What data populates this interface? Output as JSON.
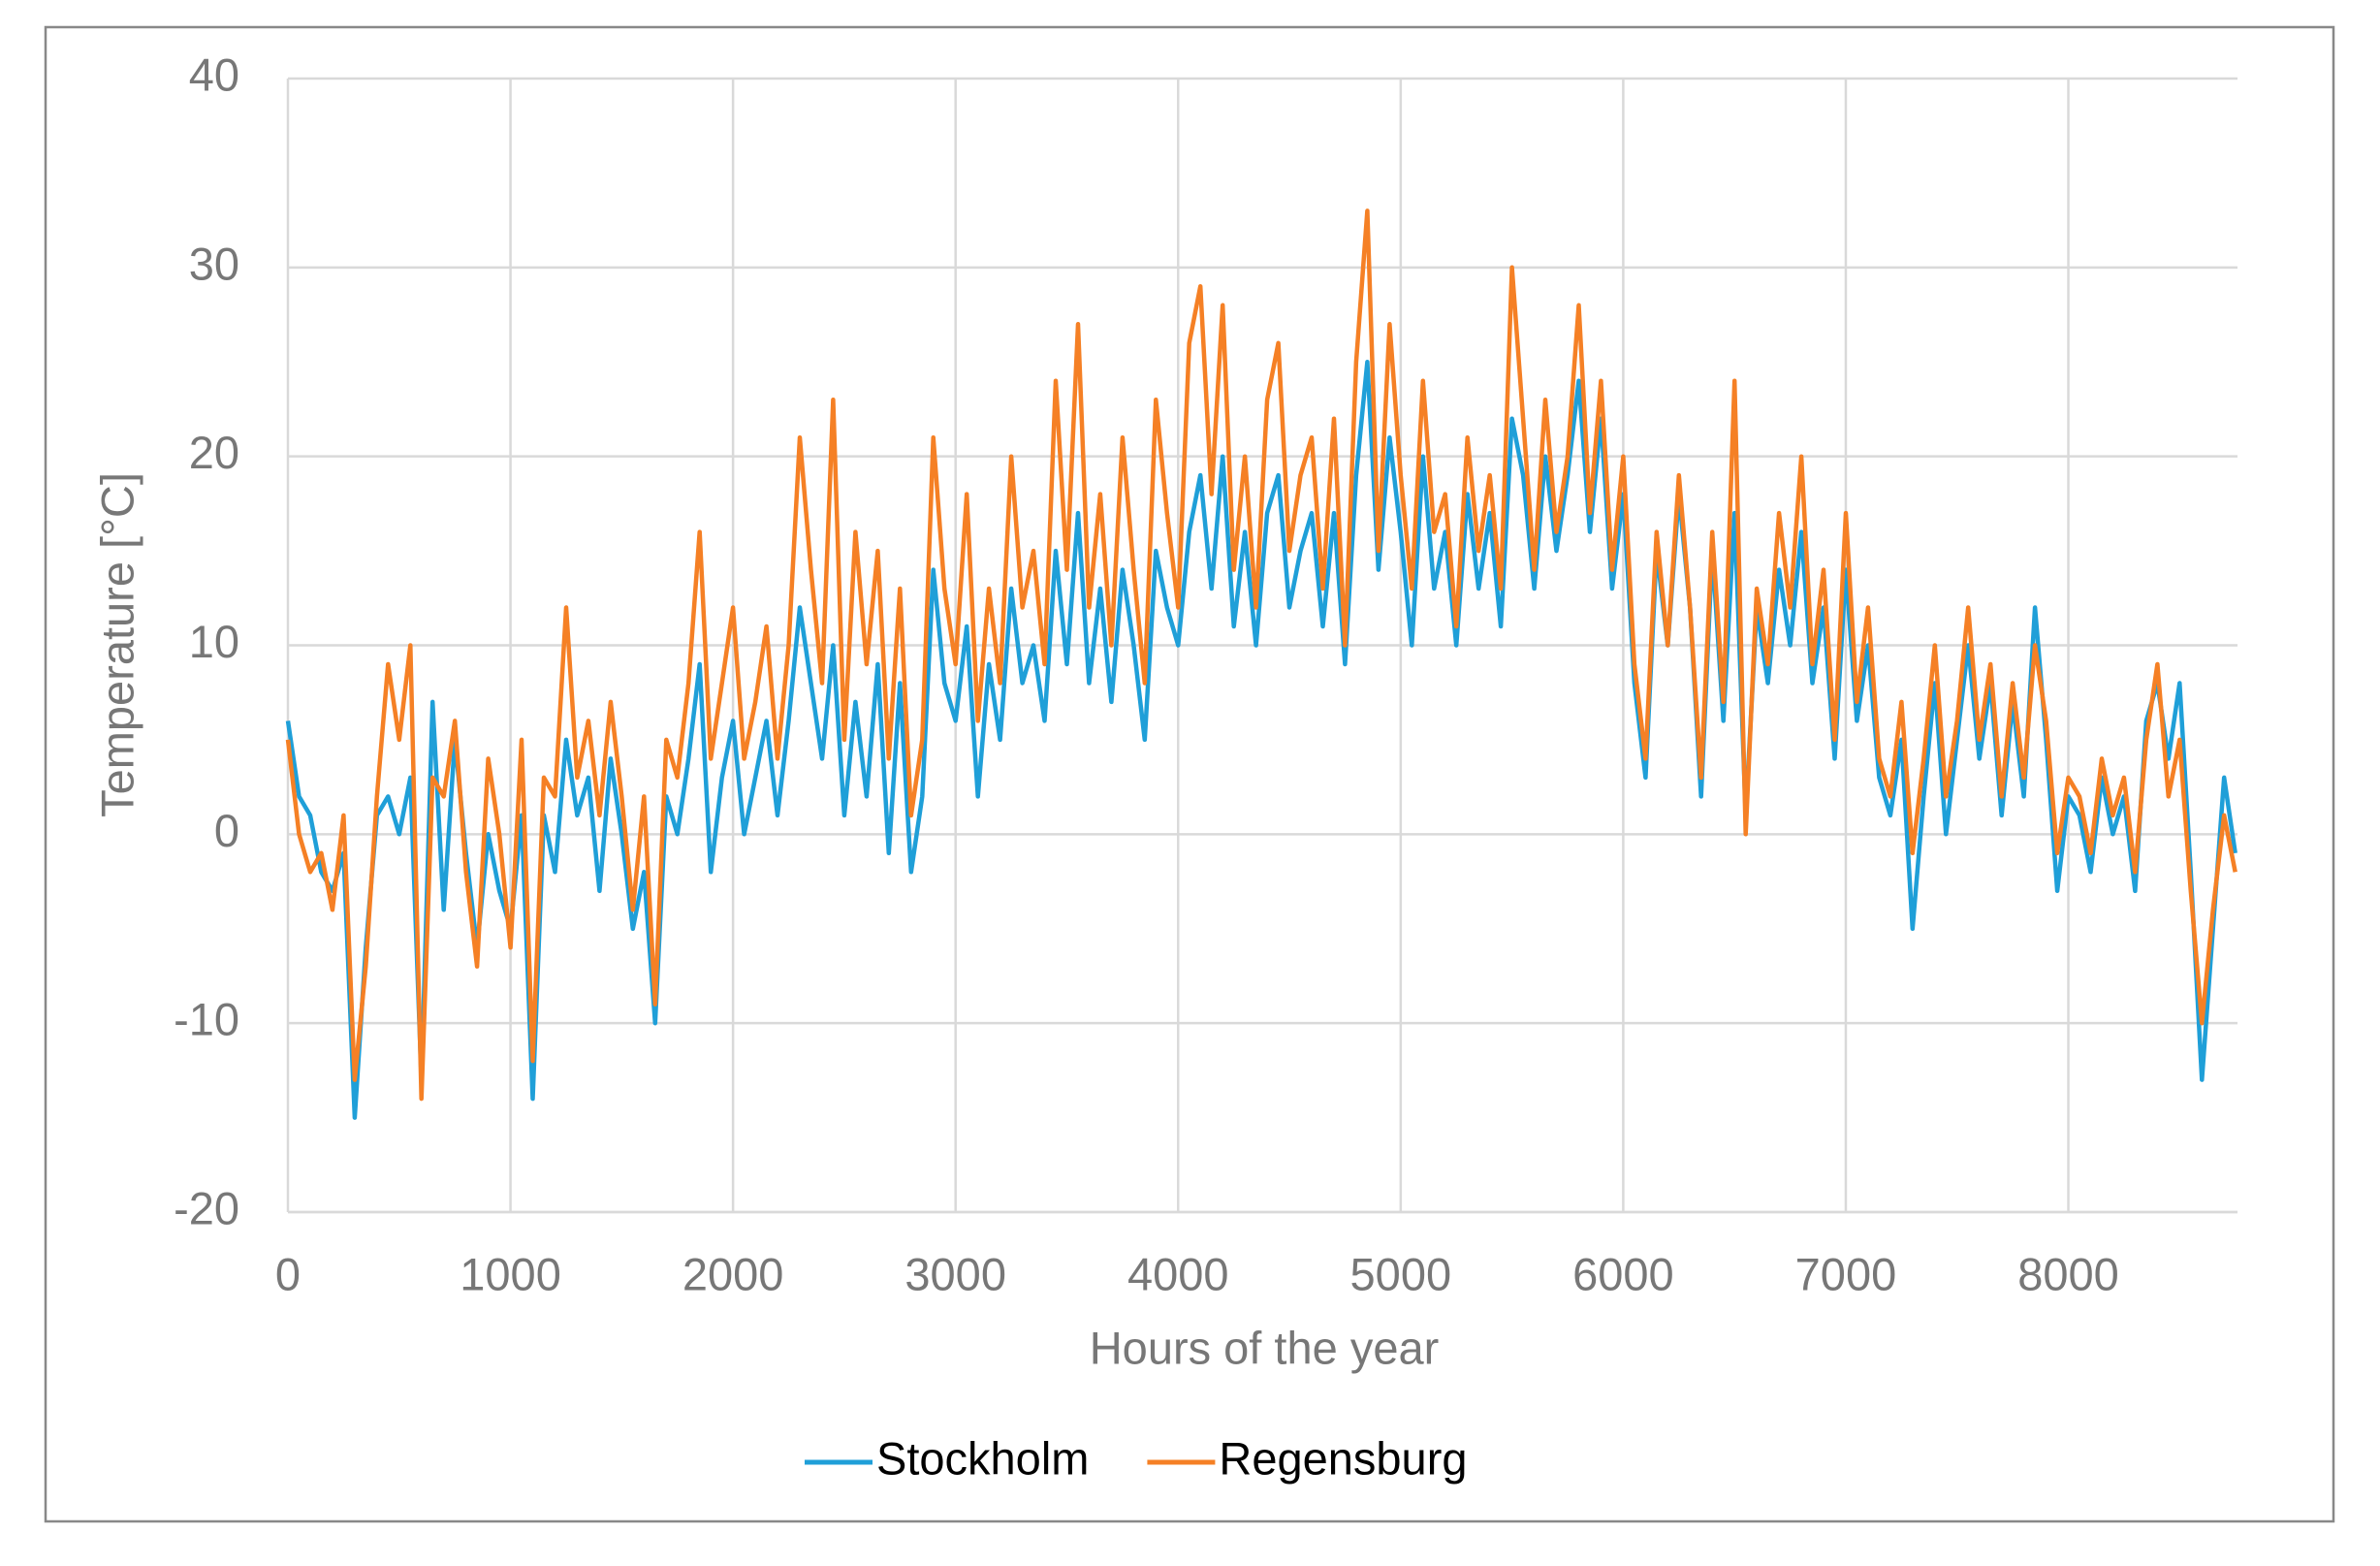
{
  "chart_data": {
    "type": "line",
    "x_label": "Hours of the year",
    "y_label": "Temperature [°C]",
    "x": [
      0,
      50,
      100,
      150,
      200,
      250,
      300,
      350,
      400,
      450,
      500,
      550,
      600,
      650,
      700,
      750,
      800,
      850,
      900,
      950,
      1000,
      1050,
      1100,
      1150,
      1200,
      1250,
      1300,
      1350,
      1400,
      1450,
      1500,
      1550,
      1600,
      1650,
      1700,
      1750,
      1800,
      1850,
      1900,
      1950,
      2000,
      2050,
      2100,
      2150,
      2200,
      2250,
      2300,
      2350,
      2400,
      2450,
      2500,
      2550,
      2600,
      2650,
      2700,
      2750,
      2800,
      2850,
      2900,
      2950,
      3000,
      3050,
      3100,
      3150,
      3200,
      3250,
      3300,
      3350,
      3400,
      3450,
      3500,
      3550,
      3600,
      3650,
      3700,
      3750,
      3800,
      3850,
      3900,
      3950,
      4000,
      4050,
      4100,
      4150,
      4200,
      4250,
      4300,
      4350,
      4400,
      4450,
      4500,
      4550,
      4600,
      4650,
      4700,
      4750,
      4800,
      4850,
      4900,
      4950,
      5000,
      5050,
      5100,
      5150,
      5200,
      5250,
      5300,
      5350,
      5400,
      5450,
      5500,
      5550,
      5600,
      5650,
      5700,
      5750,
      5800,
      5850,
      5900,
      5950,
      6000,
      6050,
      6100,
      6150,
      6200,
      6250,
      6300,
      6350,
      6400,
      6450,
      6500,
      6550,
      6600,
      6650,
      6700,
      6750,
      6800,
      6850,
      6900,
      6950,
      7000,
      7050,
      7100,
      7150,
      7200,
      7250,
      7300,
      7350,
      7400,
      7450,
      7500,
      7550,
      7600,
      7650,
      7700,
      7750,
      7800,
      7850,
      7900,
      7950,
      8000,
      8050,
      8100,
      8150,
      8200,
      8250,
      8300,
      8350,
      8400,
      8450,
      8500,
      8550,
      8600,
      8650,
      8700,
      8750
    ],
    "series": [
      {
        "name": "Stockholm",
        "color": "#1f9fd8",
        "values": [
          6,
          2,
          1,
          -2,
          -3,
          -1,
          -15,
          -6,
          1,
          2,
          0,
          3,
          -13,
          7,
          -4,
          5,
          -1,
          -6,
          0,
          -3,
          -5,
          1,
          -14,
          1,
          -2,
          5,
          1,
          3,
          -3,
          4,
          0,
          -5,
          -2,
          -10,
          2,
          0,
          4,
          9,
          -2,
          3,
          6,
          0,
          3,
          6,
          1,
          6,
          12,
          8,
          4,
          10,
          1,
          7,
          2,
          9,
          -1,
          8,
          -2,
          2,
          14,
          8,
          6,
          11,
          2,
          9,
          5,
          13,
          8,
          10,
          6,
          15,
          9,
          17,
          8,
          13,
          7,
          14,
          10,
          5,
          15,
          12,
          10,
          16,
          19,
          13,
          20,
          11,
          16,
          10,
          17,
          19,
          12,
          15,
          17,
          11,
          17,
          9,
          19,
          25,
          14,
          21,
          16,
          10,
          20,
          13,
          16,
          10,
          18,
          13,
          17,
          11,
          22,
          19,
          13,
          20,
          15,
          19,
          24,
          16,
          22,
          13,
          18,
          8,
          3,
          15,
          10,
          18,
          12,
          2,
          15,
          6,
          17,
          1,
          12,
          8,
          14,
          10,
          16,
          8,
          12,
          4,
          14,
          6,
          10,
          3,
          1,
          5,
          -5,
          2,
          8,
          0,
          5,
          10,
          4,
          8,
          1,
          7,
          2,
          12,
          5,
          -3,
          2,
          1,
          -2,
          3,
          0,
          2,
          -3,
          6,
          8,
          4,
          8,
          -2,
          -13,
          -5,
          3,
          -1
        ]
      },
      {
        "name": "Regensburg",
        "color": "#f58025",
        "values": [
          5,
          0,
          -2,
          -1,
          -4,
          1,
          -13,
          -7,
          2,
          9,
          5,
          10,
          -14,
          3,
          2,
          6,
          -2,
          -7,
          4,
          0,
          -6,
          5,
          -12,
          3,
          2,
          12,
          3,
          6,
          1,
          7,
          2,
          -4,
          2,
          -9,
          5,
          3,
          8,
          16,
          4,
          8,
          12,
          4,
          7,
          11,
          4,
          10,
          21,
          14,
          8,
          23,
          5,
          16,
          9,
          15,
          4,
          13,
          1,
          5,
          21,
          13,
          9,
          18,
          6,
          13,
          8,
          20,
          12,
          15,
          9,
          24,
          14,
          27,
          12,
          18,
          10,
          21,
          14,
          8,
          23,
          17,
          12,
          26,
          29,
          18,
          28,
          14,
          20,
          12,
          23,
          26,
          15,
          19,
          21,
          13,
          22,
          10,
          25,
          33,
          15,
          27,
          19,
          13,
          24,
          16,
          18,
          11,
          21,
          15,
          19,
          13,
          30,
          22,
          14,
          23,
          16,
          20,
          28,
          17,
          24,
          14,
          20,
          9,
          4,
          16,
          10,
          19,
          12,
          3,
          16,
          7,
          24,
          0,
          13,
          9,
          17,
          12,
          20,
          9,
          14,
          5,
          17,
          7,
          12,
          4,
          2,
          7,
          -1,
          4,
          10,
          2,
          6,
          12,
          5,
          9,
          2,
          8,
          3,
          10,
          6,
          -1,
          3,
          2,
          -1,
          4,
          1,
          3,
          -2,
          5,
          9,
          2,
          5,
          -3,
          -10,
          -4,
          1,
          -2
        ]
      }
    ],
    "xlim": [
      0,
      8760
    ],
    "xticks": [
      0,
      1000,
      2000,
      3000,
      4000,
      5000,
      6000,
      7000,
      8000
    ],
    "ylim": [
      -20,
      40
    ],
    "yticks": [
      -20,
      -10,
      0,
      10,
      20,
      30,
      40
    ],
    "grid": true,
    "legend": "bottom"
  }
}
